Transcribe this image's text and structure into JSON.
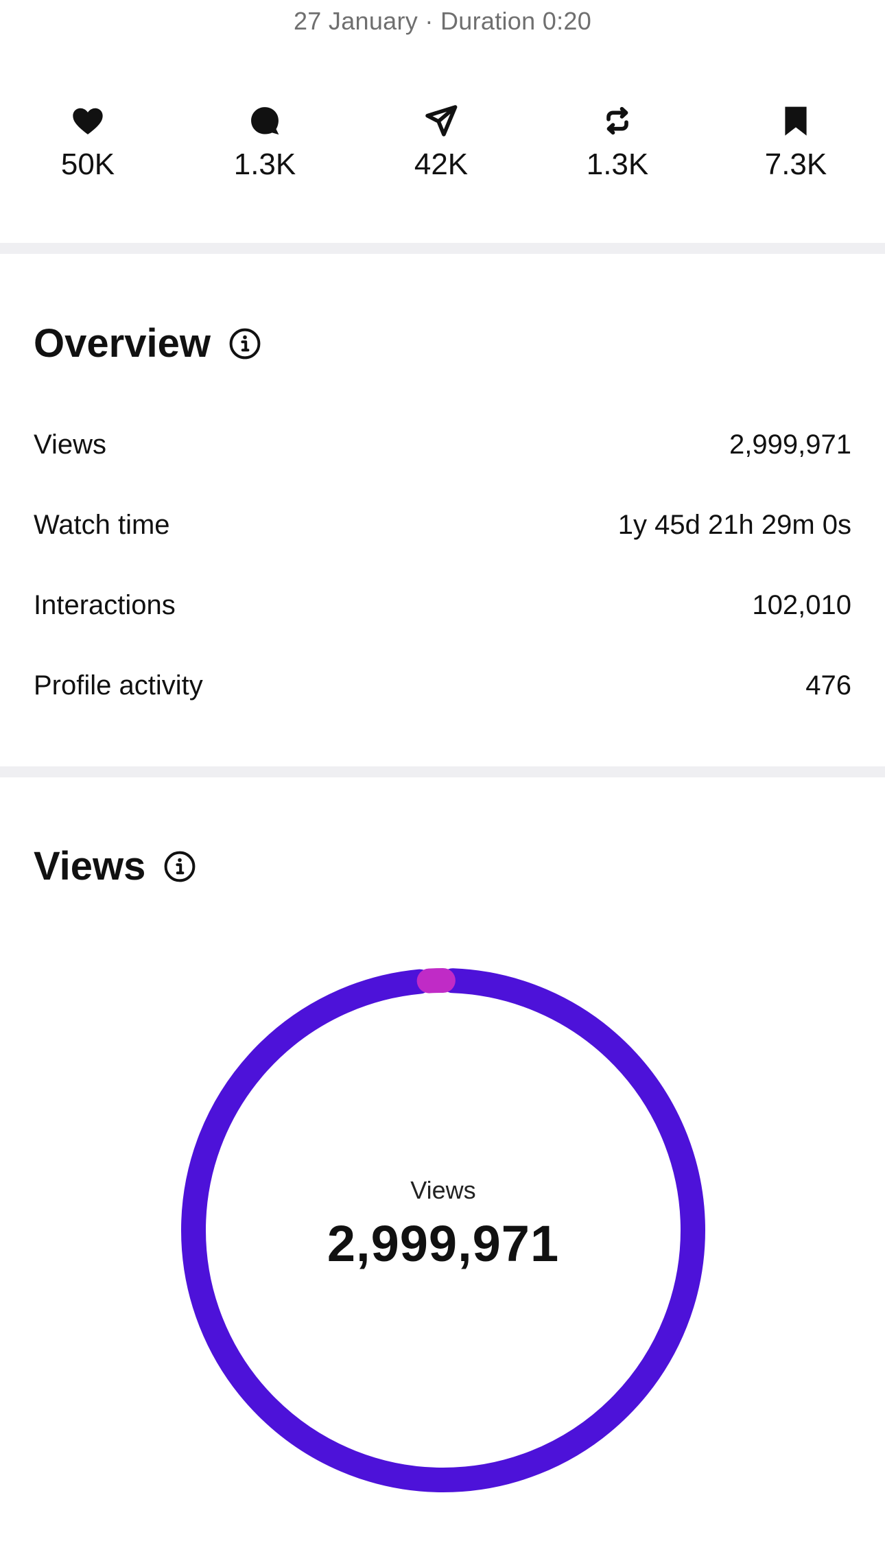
{
  "post": {
    "meta": "27 January · Duration 0:20"
  },
  "stats": [
    {
      "icon": "heart-icon",
      "value": "50K"
    },
    {
      "icon": "comment-icon",
      "value": "1.3K"
    },
    {
      "icon": "share-icon",
      "value": "42K"
    },
    {
      "icon": "repost-icon",
      "value": "1.3K"
    },
    {
      "icon": "bookmark-icon",
      "value": "7.3K"
    }
  ],
  "overview": {
    "title": "Overview",
    "rows": [
      {
        "label": "Views",
        "value": "2,999,971"
      },
      {
        "label": "Watch time",
        "value": "1y 45d 21h 29m 0s"
      },
      {
        "label": "Interactions",
        "value": "102,010"
      },
      {
        "label": "Profile activity",
        "value": "476"
      }
    ]
  },
  "views": {
    "title": "Views",
    "center_label": "Views",
    "center_value": "2,999,971"
  },
  "colors": {
    "primary_segment": "#4d12d9",
    "secondary_segment": "#c02bc6",
    "divider": "#efeff2",
    "meta_text": "#6f6f6f"
  },
  "chart_data": {
    "type": "pie",
    "segments": [
      {
        "color": "#4d12d9",
        "fraction": 0.985
      },
      {
        "color": "#c02bc6",
        "fraction": 0.015
      }
    ]
  }
}
